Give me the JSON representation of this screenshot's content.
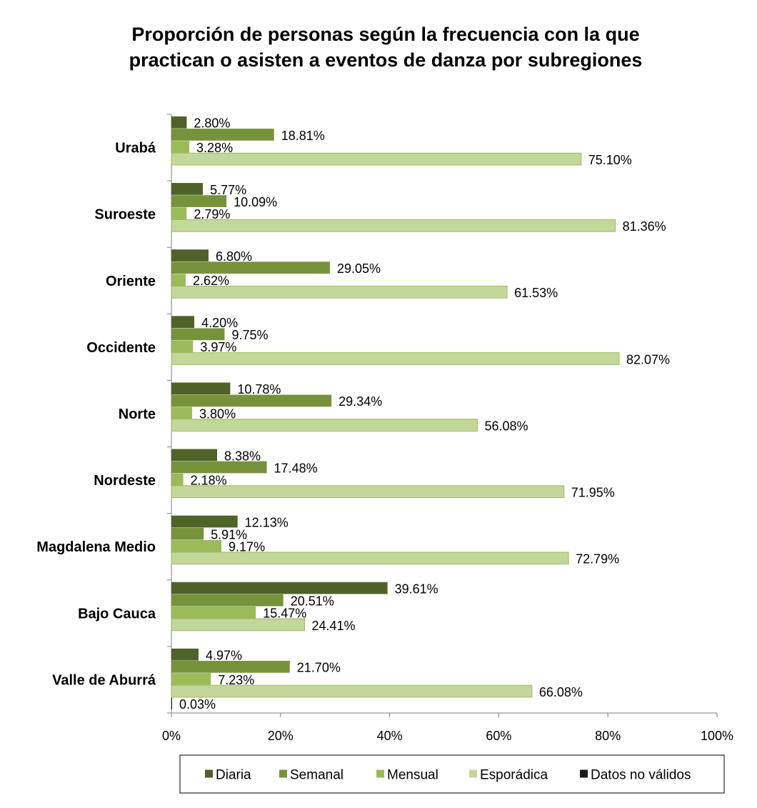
{
  "chart_data": {
    "type": "bar",
    "orientation": "horizontal",
    "title": "Proporción de personas según la frecuencia con la que practican o asisten a eventos de danza  por subregiones",
    "title_lines": [
      "Proporción de personas según la frecuencia con la que",
      "practican o asisten a eventos de danza  por subregiones"
    ],
    "categories": [
      "Urabá",
      "Suroeste",
      "Oriente",
      "Occidente",
      "Norte",
      "Nordeste",
      "Magdalena Medio",
      "Bajo Cauca",
      "Valle de Aburrá"
    ],
    "series": [
      {
        "name": "Diaria",
        "color": "#4f6228",
        "values": [
          2.8,
          5.77,
          6.8,
          4.2,
          10.78,
          8.38,
          12.13,
          39.61,
          4.97
        ],
        "labels": [
          "2.80%",
          "5.77%",
          "6.80%",
          "4.20%",
          "10.78%",
          "8.38%",
          "12.13%",
          "39.61%",
          "4.97%"
        ]
      },
      {
        "name": "Semanal",
        "color": "#76933c",
        "values": [
          18.81,
          10.09,
          29.05,
          9.75,
          29.34,
          17.48,
          5.91,
          20.51,
          21.7
        ],
        "labels": [
          "18.81%",
          "10.09%",
          "29.05%",
          "9.75%",
          "29.34%",
          "17.48%",
          "5.91%",
          "20.51%",
          "21.70%"
        ]
      },
      {
        "name": "Mensual",
        "color": "#9bbb59",
        "values": [
          3.28,
          2.79,
          2.62,
          3.97,
          3.8,
          2.18,
          9.17,
          15.47,
          7.23
        ],
        "labels": [
          "3.28%",
          "2.79%",
          "2.62%",
          "3.97%",
          "3.80%",
          "2.18%",
          "9.17%",
          "15.47%",
          "7.23%"
        ]
      },
      {
        "name": "Esporádica",
        "color": "#c4d79b",
        "values": [
          75.1,
          81.36,
          61.53,
          82.07,
          56.08,
          71.95,
          72.79,
          24.41,
          66.08
        ],
        "labels": [
          "75.10%",
          "81.36%",
          "61.53%",
          "82.07%",
          "56.08%",
          "71.95%",
          "72.79%",
          "24.41%",
          "66.08%"
        ]
      },
      {
        "name": "Datos no válidos",
        "color": "#1a1a1a",
        "values": [
          null,
          null,
          null,
          null,
          null,
          null,
          null,
          null,
          0.03
        ],
        "labels": [
          null,
          null,
          null,
          null,
          null,
          null,
          null,
          null,
          "0.03%"
        ]
      }
    ],
    "xlim": [
      0,
      100
    ],
    "xticks": [
      0,
      20,
      40,
      60,
      80,
      100
    ],
    "xtick_labels": [
      "0%",
      "20%",
      "40%",
      "60%",
      "80%",
      "100%"
    ],
    "xlabel": "",
    "ylabel": "",
    "grid": false,
    "legend_position": "bottom"
  }
}
